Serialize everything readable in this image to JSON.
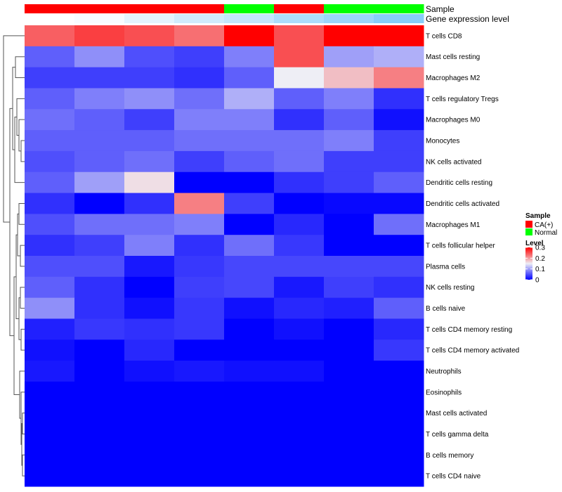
{
  "chart_data": {
    "type": "heatmap",
    "column_annotations": [
      {
        "name": "Sample",
        "values": [
          "CA(+)",
          "CA(+)",
          "CA(+)",
          "CA(+)",
          "Normal",
          "CA(+)",
          "Normal",
          "Normal"
        ]
      },
      {
        "name": "Gene expression level",
        "values": [
          0.0,
          0.02,
          0.08,
          0.14,
          0.18,
          0.25,
          0.3,
          0.36
        ]
      }
    ],
    "rows": [
      "T cells CD8",
      "Mast cells resting",
      "Macrophages M2",
      "T cells regulatory  Tregs",
      "Macrophages M0",
      "Monocytes",
      "NK cells activated",
      "Dendritic cells resting",
      "Dendritic cells activated",
      "Macrophages M1",
      "T cells follicular helper",
      "Plasma cells",
      "NK cells resting",
      "B cells naive",
      "T cells CD4 memory resting",
      "T cells CD4 memory activated",
      "Neutrophils",
      "Eosinophils",
      "Mast cells activated",
      "T cells gamma delta",
      "B cells memory",
      "T cells CD4 naive"
    ],
    "values": [
      [
        0.24,
        0.26,
        0.25,
        0.23,
        0.3,
        0.25,
        0.3,
        0.3
      ],
      [
        0.06,
        0.09,
        0.05,
        0.04,
        0.08,
        0.25,
        0.1,
        0.11
      ],
      [
        0.04,
        0.04,
        0.04,
        0.03,
        0.06,
        0.15,
        0.18,
        0.22
      ],
      [
        0.06,
        0.08,
        0.09,
        0.07,
        0.11,
        0.06,
        0.08,
        0.03
      ],
      [
        0.07,
        0.06,
        0.04,
        0.08,
        0.08,
        0.03,
        0.06,
        0.01
      ],
      [
        0.06,
        0.06,
        0.06,
        0.07,
        0.07,
        0.07,
        0.08,
        0.04
      ],
      [
        0.05,
        0.06,
        0.07,
        0.04,
        0.06,
        0.07,
        0.04,
        0.04
      ],
      [
        0.06,
        0.1,
        0.16,
        0.0,
        0.0,
        0.03,
        0.04,
        0.06
      ],
      [
        0.03,
        0.0,
        0.03,
        0.22,
        0.04,
        0.0,
        0.005,
        0.005
      ],
      [
        0.05,
        0.07,
        0.07,
        0.08,
        0.0,
        0.025,
        0.0,
        0.07
      ],
      [
        0.03,
        0.04,
        0.08,
        0.03,
        0.07,
        0.035,
        0.0,
        0.0
      ],
      [
        0.05,
        0.05,
        0.015,
        0.035,
        0.045,
        0.045,
        0.045,
        0.045
      ],
      [
        0.06,
        0.03,
        0.0,
        0.04,
        0.045,
        0.015,
        0.04,
        0.03
      ],
      [
        0.09,
        0.03,
        0.01,
        0.035,
        0.01,
        0.025,
        0.02,
        0.06
      ],
      [
        0.02,
        0.035,
        0.03,
        0.035,
        0.0,
        0.01,
        0.0,
        0.025
      ],
      [
        0.01,
        0.0,
        0.025,
        0.0,
        0.0,
        0.0,
        0.0,
        0.035
      ],
      [
        0.015,
        0.0,
        0.01,
        0.015,
        0.01,
        0.01,
        0.0,
        0.0
      ],
      [
        0.0,
        0.0,
        0.0,
        0.0,
        0.0,
        0.0,
        0.0,
        0.0
      ],
      [
        0.0,
        0.0,
        0.0,
        0.0,
        0.0,
        0.0,
        0.0,
        0.0
      ],
      [
        0.0,
        0.0,
        0.0,
        0.0,
        0.0,
        0.0,
        0.0,
        0.0
      ],
      [
        0.0,
        0.0,
        0.0,
        0.0,
        0.0,
        0.0,
        0.0,
        0.0
      ],
      [
        0.0,
        0.0,
        0.0,
        0.0,
        0.0,
        0.0,
        0.0,
        0.0
      ]
    ],
    "color_scale": {
      "min": 0,
      "mid": 0.15,
      "max": 0.3,
      "low_color": "#0000ff",
      "mid_color": "#eeeef5",
      "high_color": "#ff0000"
    },
    "dendrogram": "rows, left side",
    "legend": {
      "sample_title": "Sample",
      "sample_items": [
        {
          "label": "CA(+)",
          "color": "#ff0000"
        },
        {
          "label": "Normal",
          "color": "#00ff00"
        }
      ],
      "level_title": "Level",
      "level_ticks": [
        "0.3",
        "0.2",
        "0.1",
        "0"
      ],
      "level_tick_values": [
        0.3,
        0.2,
        0.1,
        0
      ],
      "placement": "right"
    },
    "annotation_colors": {
      "sample": {
        "CA(+)": "#ff0000",
        "Normal": "#00ff00"
      },
      "expression_low": "#ffffff",
      "expression_high": "#87cefa"
    }
  }
}
